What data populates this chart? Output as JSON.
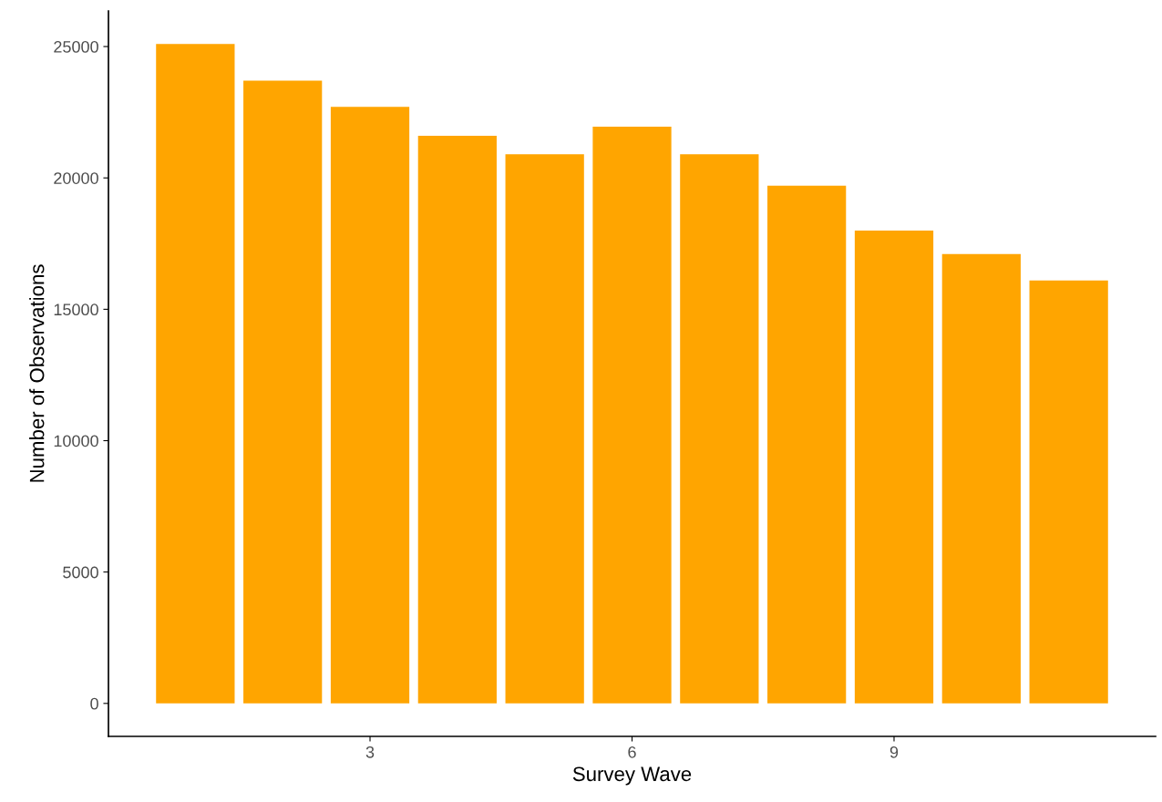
{
  "chart_data": {
    "type": "bar",
    "xlabel": "Survey Wave",
    "ylabel": "Number of Observations",
    "x": [
      1,
      2,
      3,
      4,
      5,
      6,
      7,
      8,
      9,
      10,
      11
    ],
    "values": [
      25100,
      23700,
      22700,
      21600,
      20900,
      21950,
      20900,
      19700,
      18000,
      17100,
      16100
    ],
    "color": "#ffa500",
    "xlim": [
      0.005,
      11.995
    ],
    "xticks": [
      3,
      6,
      9
    ],
    "ylim": [
      -1255,
      26355
    ],
    "yticks": [
      0,
      5000,
      10000,
      15000,
      20000,
      25000
    ],
    "grid": false
  }
}
